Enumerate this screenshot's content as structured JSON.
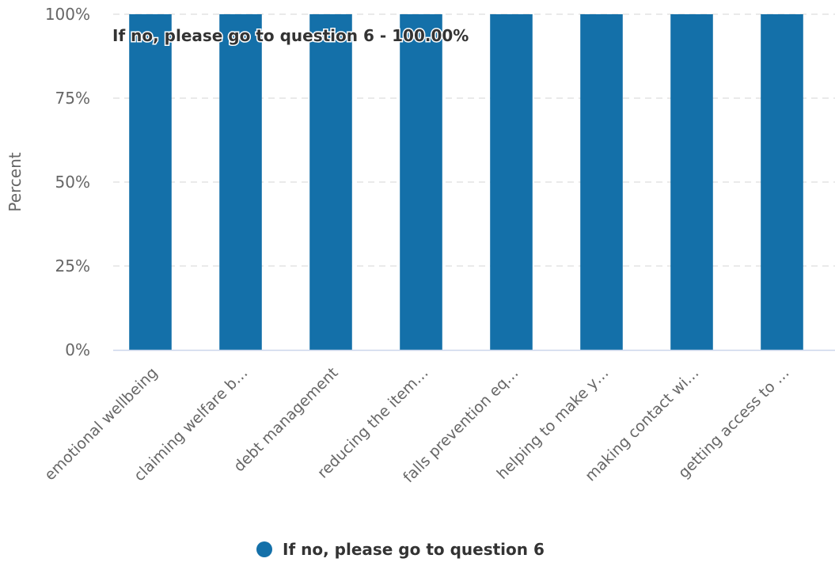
{
  "chart_data": {
    "type": "bar",
    "categories": [
      "emotional wellbeing",
      "claiming welfare b…",
      "debt management",
      "reducing the item…",
      "falls prevention eq…",
      "helping to make y…",
      "making contact wi…",
      "getting access to …"
    ],
    "series": [
      {
        "name": "If no, please go to question 6",
        "values": [
          100,
          100,
          100,
          100,
          100,
          100,
          100,
          100
        ],
        "color": "#1470a9"
      }
    ],
    "ylabel": "Percent",
    "xlabel": "",
    "ylim": [
      0,
      100
    ],
    "yticks": [
      0,
      25,
      50,
      75,
      100
    ],
    "ytick_labels": [
      "0%",
      "25%",
      "50%",
      "75%",
      "100%"
    ],
    "grid": true,
    "legend_position": "bottom-center",
    "annotation": "If no, please go to question 6 - 100.00%"
  }
}
